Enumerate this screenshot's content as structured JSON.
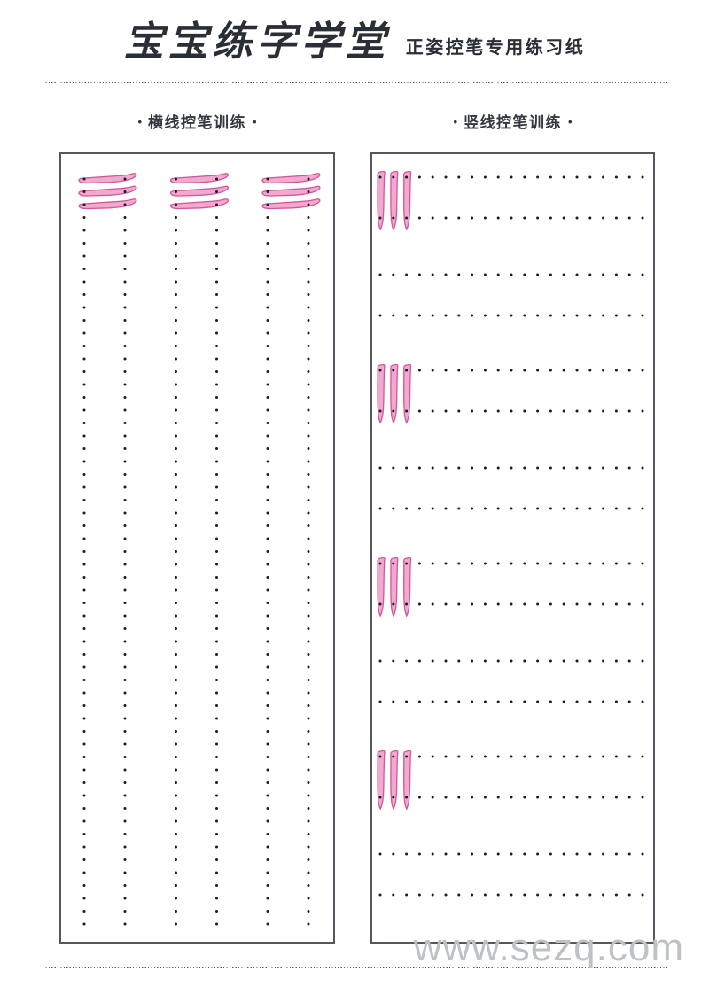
{
  "header": {
    "title": "宝宝练字学堂",
    "subtitle": "正姿控笔专用练习纸"
  },
  "sections": {
    "bullet": "•",
    "horizontal": {
      "label": "横线控笔训练"
    },
    "vertical": {
      "label": "竖线控笔训练"
    }
  },
  "watermark": {
    "text": "www.sezq.com"
  },
  "colors": {
    "text": "#2a2e37",
    "section_text": "#33373f",
    "stroke_fill": "#efa0c9",
    "stroke_outline": "#d2569e",
    "dot": "#1c1c1e",
    "panel_border": "#54575d",
    "divider": "#54575d",
    "watermark": "#bfc2c5"
  },
  "horizontal_panel": {
    "groups": 3,
    "columns_per_group": 2,
    "guide_strokes_per_group": 3,
    "stroke_rows": 3,
    "dot_rows_per_column": 56
  },
  "vertical_panel": {
    "groups": 4,
    "row_pairs_per_group": 2,
    "guide_strokes_per_group": 3,
    "dots_per_row": 21
  }
}
